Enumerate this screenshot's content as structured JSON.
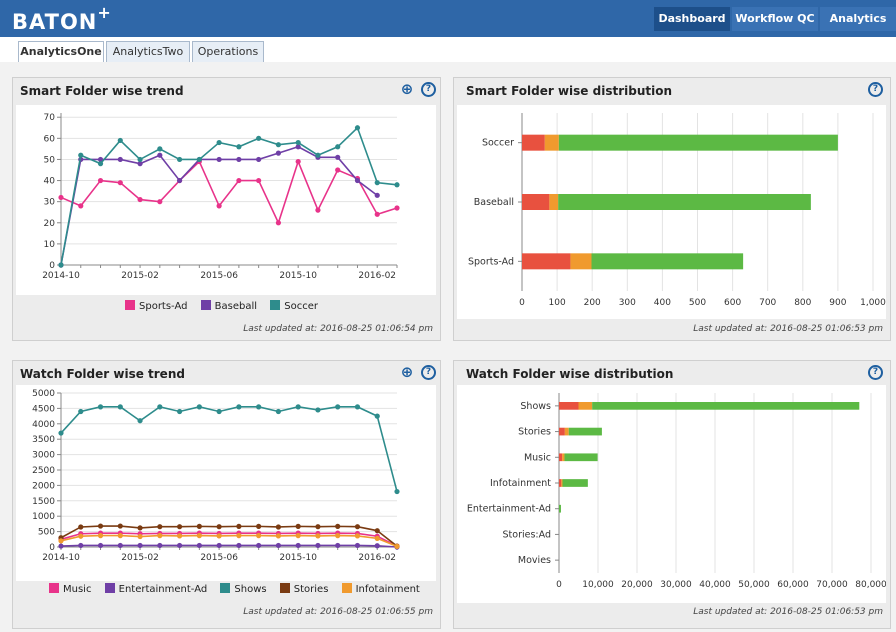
{
  "header": {
    "logo": "BATON",
    "logo_plus": "+",
    "nav": [
      "Dashboard",
      "Workflow QC",
      "Analytics"
    ]
  },
  "tabs": [
    "AnalyticsOne",
    "AnalyticsTwo",
    "Operations"
  ],
  "colors": {
    "header_bg": "#2f67a8",
    "nav_active": "#1d4f8a",
    "pink": "#e8338a",
    "purple": "#6f3fa6",
    "teal": "#2e8c8c",
    "brown": "#7a3b12",
    "orange": "#f09a2e",
    "red": "#e8513f",
    "green": "#5cb944"
  },
  "panels": {
    "sf_trend": {
      "title": "Smart Folder wise trend",
      "updated": "Last updated at: 2016-08-25 01:06:54 pm"
    },
    "sf_dist": {
      "title": "Smart Folder wise distribution",
      "updated": "Last updated at: 2016-08-25 01:06:53 pm"
    },
    "wf_trend": {
      "title": "Watch Folder wise trend",
      "updated": "Last updated at: 2016-08-25 01:06:55 pm"
    },
    "wf_dist": {
      "title": "Watch Folder wise distribution",
      "updated": "Last updated at: 2016-08-25 01:06:53 pm"
    }
  },
  "chart_data": [
    {
      "type": "line",
      "title": "Smart Folder wise trend",
      "x": [
        "2014-10",
        "2014-11",
        "2014-12",
        "2015-01",
        "2015-02",
        "2015-03",
        "2015-04",
        "2015-05",
        "2015-06",
        "2015-07",
        "2015-08",
        "2015-09",
        "2015-10",
        "2015-11",
        "2015-12",
        "2016-01",
        "2016-02",
        "2016-03"
      ],
      "xticks": [
        "2014-10",
        "2015-02",
        "2015-06",
        "2015-10",
        "2016-02"
      ],
      "yticks": [
        "0",
        "10",
        "20",
        "30",
        "40",
        "50",
        "60",
        "70"
      ],
      "ylim": [
        0,
        72
      ],
      "series": [
        {
          "name": "Sports-Ad",
          "color": "#e8338a",
          "values": [
            32,
            28,
            40,
            39,
            31,
            30,
            40,
            49,
            28,
            40,
            40,
            20,
            49,
            26,
            45,
            41,
            24,
            27
          ]
        },
        {
          "name": "Baseball",
          "color": "#6f3fa6",
          "values": [
            0,
            50,
            50,
            50,
            48,
            52,
            40,
            50,
            50,
            50,
            50,
            53,
            56,
            51,
            51,
            40,
            33,
            null
          ]
        },
        {
          "name": "Soccer",
          "color": "#2e8c8c",
          "values": [
            0,
            52,
            48,
            59,
            50,
            55,
            50,
            50,
            58,
            56,
            60,
            57,
            58,
            52,
            56,
            65,
            39,
            38
          ]
        }
      ],
      "series_start": [
        0,
        0,
        0
      ]
    },
    {
      "type": "bar",
      "title": "Smart Folder wise distribution",
      "categories": [
        "Soccer",
        "Baseball",
        "Sports-Ad"
      ],
      "segments": [
        {
          "color": "#e8513f",
          "values": [
            65,
            78,
            138
          ]
        },
        {
          "color": "#f09a2e",
          "values": [
            40,
            25,
            60
          ]
        },
        {
          "color": "#5cb944",
          "values": [
            795,
            720,
            432
          ]
        }
      ],
      "xticks": [
        "0",
        "100",
        "200",
        "300",
        "400",
        "500",
        "600",
        "700",
        "800",
        "900",
        "1,000"
      ],
      "xlim": [
        0,
        1000
      ]
    },
    {
      "type": "line",
      "title": "Watch Folder wise trend",
      "x": [
        "2014-10",
        "2014-11",
        "2014-12",
        "2015-01",
        "2015-02",
        "2015-03",
        "2015-04",
        "2015-05",
        "2015-06",
        "2015-07",
        "2015-08",
        "2015-09",
        "2015-10",
        "2015-11",
        "2015-12",
        "2016-01",
        "2016-02",
        "2016-03"
      ],
      "xticks": [
        "2014-10",
        "2015-02",
        "2015-06",
        "2015-10",
        "2016-02"
      ],
      "yticks": [
        "0",
        "500",
        "1000",
        "1500",
        "2000",
        "2500",
        "3000",
        "3500",
        "4000",
        "4500",
        "5000"
      ],
      "ylim": [
        0,
        5000
      ],
      "series": [
        {
          "name": "Music",
          "color": "#e8338a",
          "values": [
            250,
            430,
            450,
            450,
            430,
            440,
            440,
            450,
            440,
            450,
            450,
            440,
            450,
            440,
            450,
            440,
            350,
            30
          ]
        },
        {
          "name": "Entertainment-Ad",
          "color": "#6f3fa6",
          "values": [
            30,
            50,
            50,
            50,
            50,
            50,
            50,
            50,
            50,
            50,
            50,
            50,
            50,
            50,
            50,
            50,
            40,
            0
          ]
        },
        {
          "name": "Shows",
          "color": "#2e8c8c",
          "values": [
            3700,
            4400,
            4550,
            4550,
            4100,
            4550,
            4400,
            4550,
            4400,
            4550,
            4550,
            4400,
            4550,
            4450,
            4550,
            4550,
            4250,
            1800
          ]
        },
        {
          "name": "Stories",
          "color": "#7a3b12",
          "values": [
            300,
            650,
            680,
            680,
            620,
            660,
            660,
            670,
            660,
            670,
            670,
            650,
            670,
            660,
            670,
            660,
            530,
            30
          ]
        },
        {
          "name": "Infotainment",
          "color": "#f09a2e",
          "values": [
            200,
            350,
            370,
            370,
            340,
            370,
            360,
            370,
            360,
            370,
            370,
            360,
            370,
            360,
            370,
            360,
            280,
            20
          ]
        }
      ],
      "series_start": [
        0,
        0,
        0,
        0,
        0
      ]
    },
    {
      "type": "bar",
      "title": "Watch Folder wise distribution",
      "categories": [
        "Shows",
        "Stories",
        "Music",
        "Infotainment",
        "Entertainment-Ad",
        "Stories:Ad",
        "Movies"
      ],
      "segments": [
        {
          "color": "#e8513f",
          "values": [
            5000,
            1500,
            800,
            600,
            0,
            0,
            0
          ]
        },
        {
          "color": "#f09a2e",
          "values": [
            3500,
            1000,
            600,
            300,
            0,
            0,
            0
          ]
        },
        {
          "color": "#5cb944",
          "values": [
            68500,
            8500,
            8500,
            6500,
            500,
            0,
            0
          ]
        }
      ],
      "xticks": [
        "0",
        "10,000",
        "20,000",
        "30,000",
        "40,000",
        "50,000",
        "60,000",
        "70,000",
        "80,000"
      ],
      "xlim": [
        0,
        80000
      ]
    }
  ]
}
